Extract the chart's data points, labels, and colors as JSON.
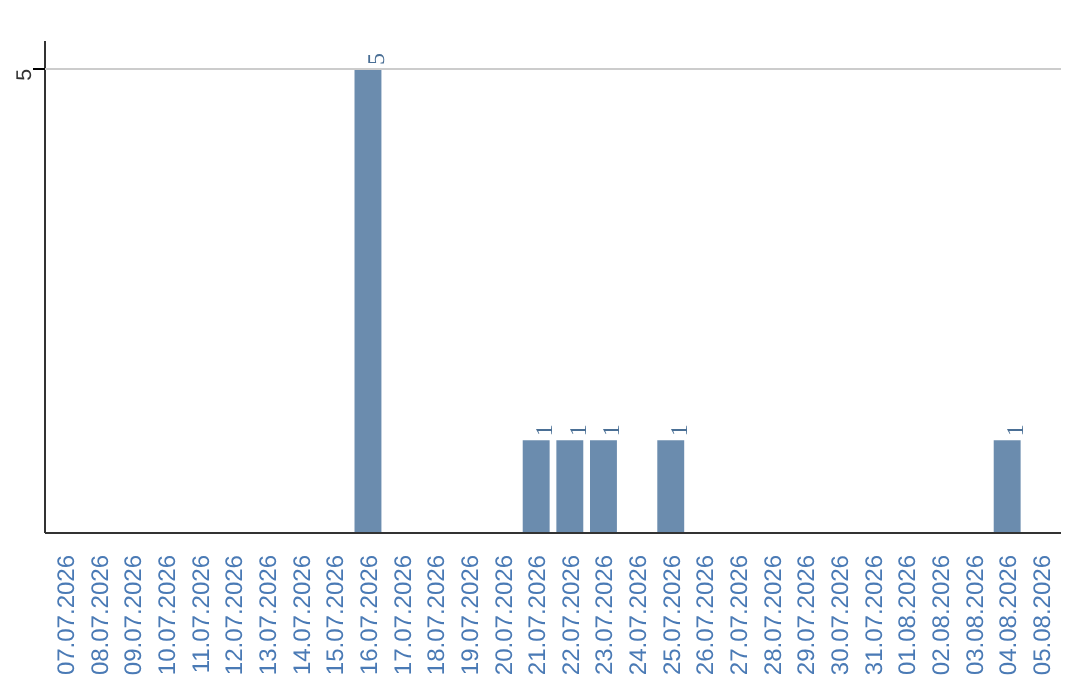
{
  "chart_data": {
    "type": "bar",
    "categories": [
      "07.07.2026",
      "08.07.2026",
      "09.07.2026",
      "10.07.2026",
      "11.07.2026",
      "12.07.2026",
      "13.07.2026",
      "14.07.2026",
      "15.07.2026",
      "16.07.2026",
      "17.07.2026",
      "18.07.2026",
      "19.07.2026",
      "20.07.2026",
      "21.07.2026",
      "22.07.2026",
      "23.07.2026",
      "24.07.2026",
      "25.07.2026",
      "26.07.2026",
      "27.07.2026",
      "28.07.2026",
      "29.07.2026",
      "30.07.2026",
      "31.07.2026",
      "01.08.2026",
      "02.08.2026",
      "03.08.2026",
      "04.08.2026",
      "05.08.2026"
    ],
    "values": [
      0,
      0,
      0,
      0,
      0,
      0,
      0,
      0,
      0,
      5,
      0,
      0,
      0,
      0,
      1,
      1,
      1,
      0,
      1,
      0,
      0,
      0,
      0,
      0,
      0,
      0,
      0,
      0,
      1,
      0
    ],
    "value_labels": [
      null,
      null,
      null,
      null,
      null,
      null,
      null,
      null,
      null,
      "5",
      null,
      null,
      null,
      null,
      "1",
      "1",
      "1",
      null,
      "1",
      null,
      null,
      null,
      null,
      null,
      null,
      null,
      null,
      null,
      "1",
      null
    ],
    "color": "#6b8cae",
    "ylim": [
      0,
      5.3
    ],
    "yticks": [
      5
    ],
    "grid": "y"
  }
}
